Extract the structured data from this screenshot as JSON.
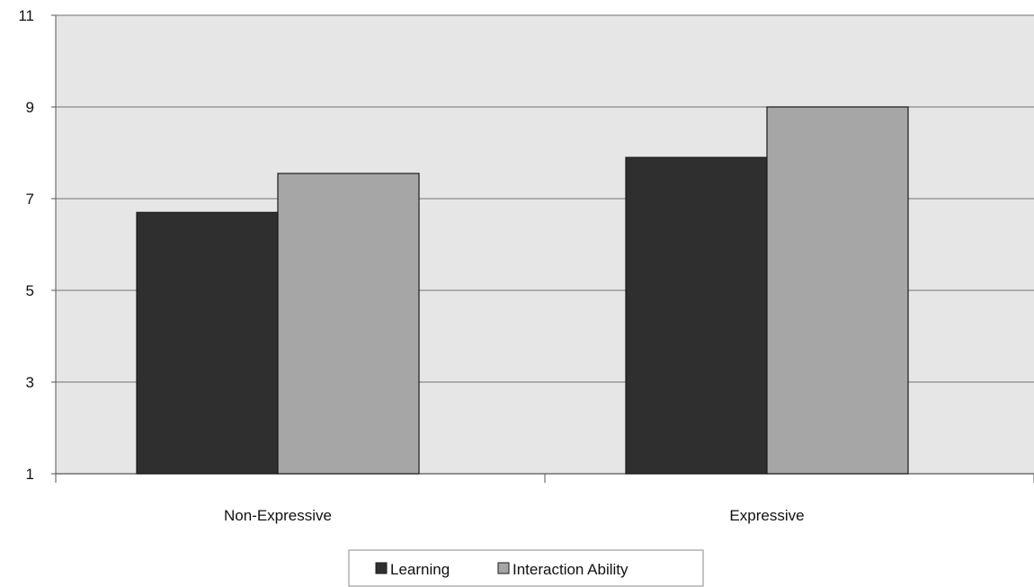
{
  "chart_data": {
    "type": "bar",
    "categories": [
      "Non-Expressive",
      "Expressive"
    ],
    "series": [
      {
        "name": "Learning",
        "values": [
          6.7,
          7.9
        ],
        "color": "#2f2f2f"
      },
      {
        "name": "Interaction Ability",
        "values": [
          7.55,
          9.0
        ],
        "color": "#a6a6a6"
      }
    ],
    "ylim": [
      1,
      11
    ],
    "yticks": [
      "1",
      "3",
      "5",
      "7",
      "9",
      "11"
    ],
    "grid": true,
    "plot_background": "#e6e6e6",
    "legend_position": "bottom"
  }
}
